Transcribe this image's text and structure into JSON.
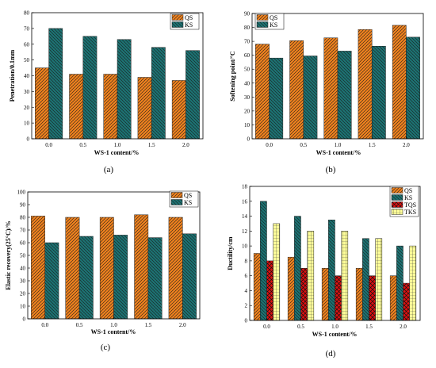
{
  "colors": {
    "orange": "#F0821E",
    "teal": "#1C7373",
    "red": "#E01010",
    "yellow": "#FFFF99"
  },
  "chart_data": [
    {
      "type": "bar",
      "panel": "(a)",
      "categories": [
        "0.0",
        "0.5",
        "1.0",
        "1.5",
        "2.0"
      ],
      "series": [
        {
          "name": "QS",
          "values": [
            45,
            41,
            41,
            39,
            37
          ],
          "color": "#F0821E",
          "pattern": "hatch-up"
        },
        {
          "name": "KS",
          "values": [
            70,
            65,
            63,
            58,
            56
          ],
          "color": "#1C7373",
          "pattern": "hatch-down"
        }
      ],
      "xlabel": "WS-1 content/%",
      "ylabel": "Penetration/0.1mm",
      "ylim": [
        0,
        80
      ],
      "yticks": [
        0,
        10,
        20,
        30,
        40,
        50,
        60,
        70,
        80
      ],
      "legend": "top-right"
    },
    {
      "type": "bar",
      "panel": "(b)",
      "categories": [
        "0.0",
        "0.5",
        "1.0",
        "1.5",
        "2.0"
      ],
      "series": [
        {
          "name": "QS",
          "values": [
            68,
            70.5,
            72.5,
            78.5,
            81.5
          ],
          "color": "#F0821E",
          "pattern": "hatch-up"
        },
        {
          "name": "KS",
          "values": [
            58,
            59.5,
            63,
            66.5,
            73
          ],
          "color": "#1C7373",
          "pattern": "hatch-down"
        }
      ],
      "xlabel": "WS-1 content/%",
      "ylabel": "Softening point/°C",
      "ylim": [
        0,
        90
      ],
      "yticks": [
        0,
        10,
        20,
        30,
        40,
        50,
        60,
        70,
        80,
        90
      ],
      "legend": "top-left"
    },
    {
      "type": "bar",
      "panel": "(c)",
      "categories": [
        "0.0",
        "0.5",
        "1.0",
        "1.5",
        "2.0"
      ],
      "series": [
        {
          "name": "QS",
          "values": [
            81,
            80,
            80,
            82,
            80
          ],
          "color": "#F0821E",
          "pattern": "hatch-up"
        },
        {
          "name": "KS",
          "values": [
            60,
            65,
            66,
            64,
            67
          ],
          "color": "#1C7373",
          "pattern": "hatch-down"
        }
      ],
      "xlabel": "WS-1 content/%",
      "ylabel": "Elastic recovery(25°C)/%",
      "ylim": [
        0,
        100
      ],
      "yticks": [
        0,
        10,
        20,
        30,
        40,
        50,
        60,
        70,
        80,
        90,
        100
      ],
      "legend": "top-right"
    },
    {
      "type": "bar",
      "panel": "(d)",
      "categories": [
        "0.0",
        "0.5",
        "1.0",
        "1.5",
        "2.0"
      ],
      "series": [
        {
          "name": "QS",
          "values": [
            9,
            8.5,
            7,
            7,
            6
          ],
          "color": "#F0821E",
          "pattern": "hatch-up"
        },
        {
          "name": "KS",
          "values": [
            16,
            14,
            13.5,
            11,
            10
          ],
          "color": "#1C7373",
          "pattern": "hatch-down"
        },
        {
          "name": "TQS",
          "values": [
            8,
            7,
            6,
            6,
            5
          ],
          "color": "#E01010",
          "pattern": "cross"
        },
        {
          "name": "TKS",
          "values": [
            13,
            12,
            12,
            11,
            10
          ],
          "color": "#FFFF99",
          "pattern": "grid"
        }
      ],
      "xlabel": "WS-1 content/%",
      "ylabel": "Ductility/cm",
      "ylim": [
        0,
        18
      ],
      "yticks": [
        0,
        2,
        4,
        6,
        8,
        10,
        12,
        14,
        16,
        18
      ],
      "legend": "top-right"
    }
  ]
}
